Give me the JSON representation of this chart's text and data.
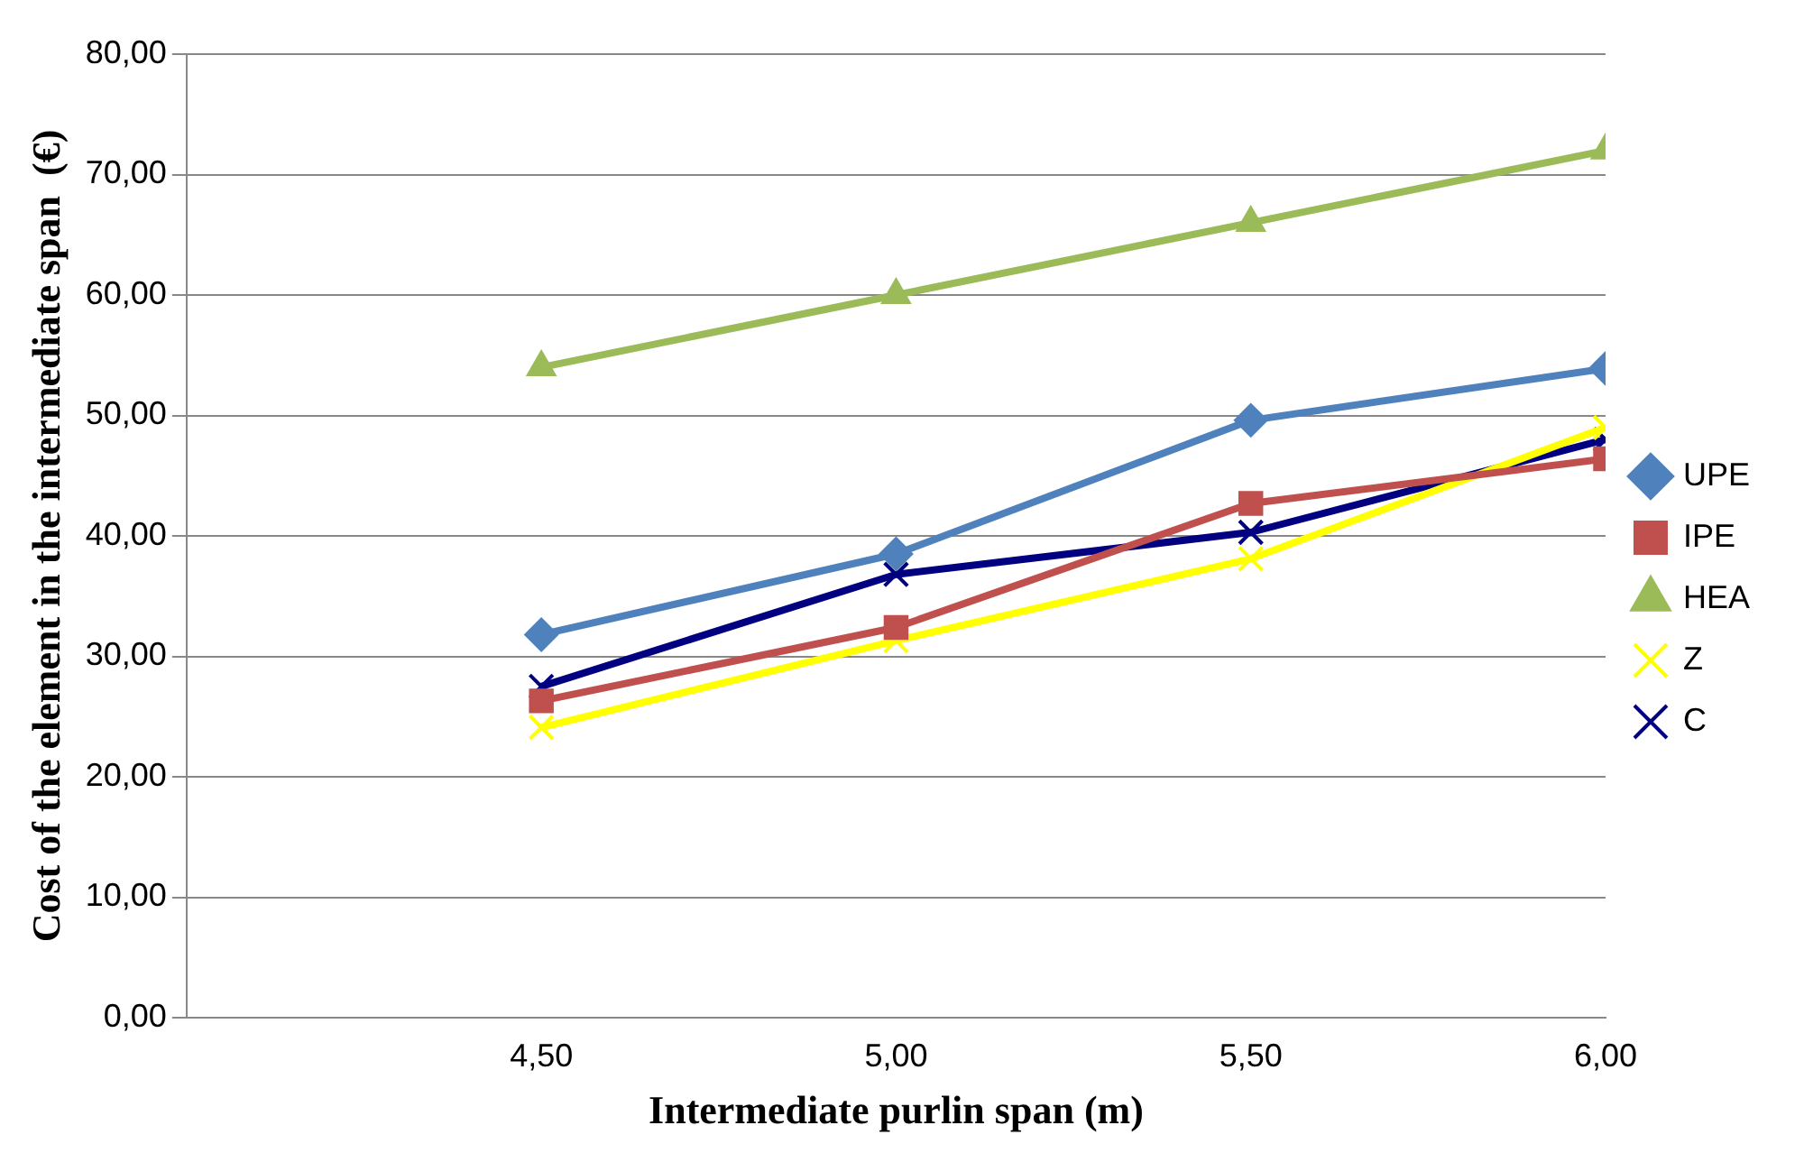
{
  "chart_data": {
    "type": "line",
    "xlabel": "Intermediate purlin span (m)",
    "ylabel": "Cost of the element in the intermediate span  (€)",
    "x": [
      4.5,
      5,
      5.5,
      6
    ],
    "xlim": [
      4,
      6
    ],
    "xticks": [
      {
        "value": 4,
        "label": null
      },
      {
        "value": 4.5,
        "label": "4,50"
      },
      {
        "value": 5,
        "label": "5,00"
      },
      {
        "value": 5.5,
        "label": "5,50"
      },
      {
        "value": 6,
        "label": "6,00"
      }
    ],
    "ylim": [
      0,
      80
    ],
    "yticks": [
      {
        "value": 0,
        "label": "0,00"
      },
      {
        "value": 10,
        "label": "10,00"
      },
      {
        "value": 20,
        "label": "20,00"
      },
      {
        "value": 30,
        "label": "30,00"
      },
      {
        "value": 40,
        "label": "40,00"
      },
      {
        "value": 50,
        "label": "50,00"
      },
      {
        "value": 60,
        "label": "60,00"
      },
      {
        "value": 70,
        "label": "70,00"
      },
      {
        "value": 80,
        "label": "80,00"
      }
    ],
    "grid": "y",
    "legend": "right",
    "series": [
      {
        "name": "UPE",
        "color": "#4f81bd",
        "marker": "diamond",
        "values": [
          31.8,
          38.5,
          49.6,
          53.9
        ]
      },
      {
        "name": "IPE",
        "color": "#c0504d",
        "marker": "square",
        "values": [
          26.3,
          32.4,
          42.7,
          46.4
        ]
      },
      {
        "name": "HEA",
        "color": "#9bbb59",
        "marker": "triangle",
        "values": [
          54,
          60,
          66,
          72
        ]
      },
      {
        "name": "Z",
        "color": "#ffff00",
        "marker": "cross",
        "values": [
          24.1,
          31.3,
          38.1,
          49
        ]
      },
      {
        "name": "C",
        "color": "#000080",
        "marker": "cross",
        "values": [
          27.5,
          36.8,
          40.3,
          48
        ]
      }
    ]
  }
}
